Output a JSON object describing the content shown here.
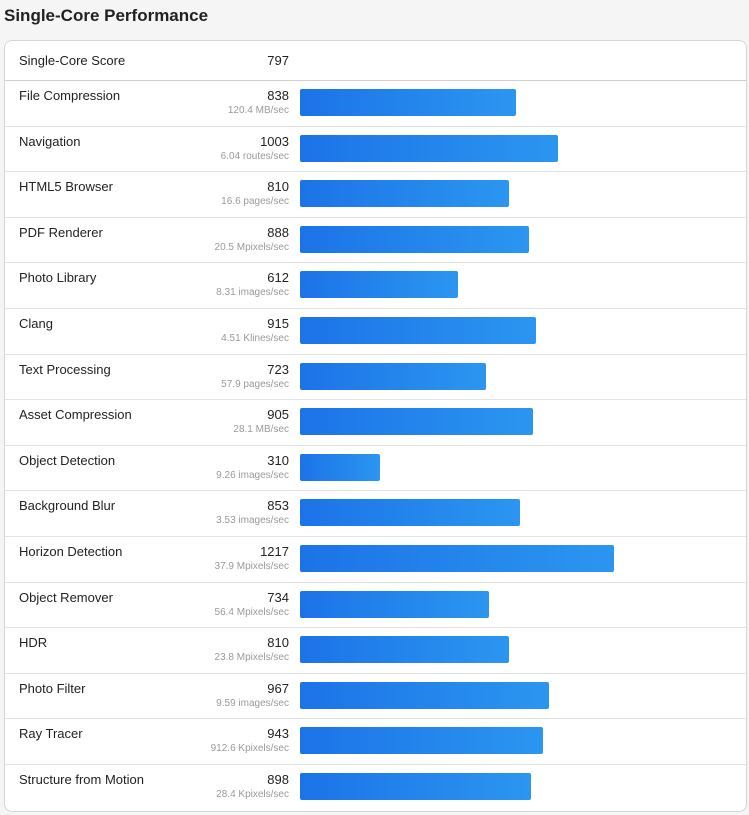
{
  "page_title": "Single-Core Performance",
  "summary": {
    "label": "Single-Core Score",
    "score": "797"
  },
  "bar_scale_max": 1300,
  "bar_color": "#1c73e8",
  "benchmarks": [
    {
      "name": "File Compression",
      "score": 838,
      "sub": "120.4 MB/sec"
    },
    {
      "name": "Navigation",
      "score": 1003,
      "sub": "6.04 routes/sec"
    },
    {
      "name": "HTML5 Browser",
      "score": 810,
      "sub": "16.6 pages/sec"
    },
    {
      "name": "PDF Renderer",
      "score": 888,
      "sub": "20.5 Mpixels/sec"
    },
    {
      "name": "Photo Library",
      "score": 612,
      "sub": "8.31 images/sec"
    },
    {
      "name": "Clang",
      "score": 915,
      "sub": "4.51 Klines/sec"
    },
    {
      "name": "Text Processing",
      "score": 723,
      "sub": "57.9 pages/sec"
    },
    {
      "name": "Asset Compression",
      "score": 905,
      "sub": "28.1 MB/sec"
    },
    {
      "name": "Object Detection",
      "score": 310,
      "sub": "9.26 images/sec"
    },
    {
      "name": "Background Blur",
      "score": 853,
      "sub": "3.53 images/sec"
    },
    {
      "name": "Horizon Detection",
      "score": 1217,
      "sub": "37.9 Mpixels/sec"
    },
    {
      "name": "Object Remover",
      "score": 734,
      "sub": "56.4 Mpixels/sec"
    },
    {
      "name": "HDR",
      "score": 810,
      "sub": "23.8 Mpixels/sec"
    },
    {
      "name": "Photo Filter",
      "score": 967,
      "sub": "9.59 images/sec"
    },
    {
      "name": "Ray Tracer",
      "score": 943,
      "sub": "912.6 Kpixels/sec"
    },
    {
      "name": "Structure from Motion",
      "score": 898,
      "sub": "28.4 Kpixels/sec"
    }
  ]
}
